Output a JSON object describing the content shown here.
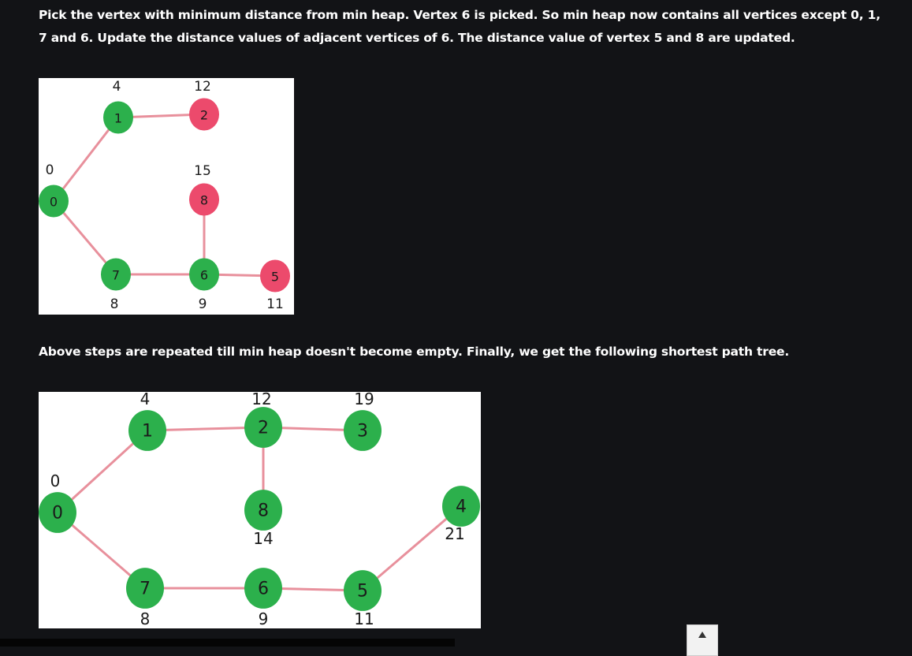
{
  "article": {
    "paragraph1": "Pick the vertex with minimum distance from min heap. Vertex 6 is picked. So min heap now contains all vertices except 0, 1, 7 and 6. Update the distance values of adjacent vertices of 6. The distance value of vertex 5 and 8 are updated.",
    "paragraph2": "Above steps are repeated till min heap doesn't become empty. Finally, we get the following shortest path tree."
  },
  "figure1": {
    "nodes": [
      {
        "id": "0",
        "dist": "0",
        "status": "green"
      },
      {
        "id": "1",
        "dist": "4",
        "status": "green"
      },
      {
        "id": "2",
        "dist": "12",
        "status": "red"
      },
      {
        "id": "8",
        "dist": "15",
        "status": "red"
      },
      {
        "id": "7",
        "dist": "8",
        "status": "green"
      },
      {
        "id": "6",
        "dist": "9",
        "status": "green"
      },
      {
        "id": "5",
        "dist": "11",
        "status": "red"
      }
    ],
    "edges": [
      [
        "0",
        "1"
      ],
      [
        "1",
        "2"
      ],
      [
        "0",
        "7"
      ],
      [
        "7",
        "6"
      ],
      [
        "6",
        "8"
      ],
      [
        "6",
        "5"
      ]
    ]
  },
  "figure2": {
    "nodes": [
      {
        "id": "0",
        "dist": "0",
        "status": "green"
      },
      {
        "id": "1",
        "dist": "4",
        "status": "green"
      },
      {
        "id": "2",
        "dist": "12",
        "status": "green"
      },
      {
        "id": "3",
        "dist": "19",
        "status": "green"
      },
      {
        "id": "8",
        "dist": "14",
        "status": "green"
      },
      {
        "id": "4",
        "dist": "21",
        "status": "green"
      },
      {
        "id": "7",
        "dist": "8",
        "status": "green"
      },
      {
        "id": "6",
        "dist": "9",
        "status": "green"
      },
      {
        "id": "5",
        "dist": "11",
        "status": "green"
      }
    ],
    "edges": [
      [
        "0",
        "1"
      ],
      [
        "1",
        "2"
      ],
      [
        "2",
        "3"
      ],
      [
        "2",
        "8"
      ],
      [
        "0",
        "7"
      ],
      [
        "7",
        "6"
      ],
      [
        "6",
        "5"
      ],
      [
        "5",
        "4"
      ]
    ]
  },
  "colors": {
    "background": "#121316",
    "node_green": "#2cb04c",
    "node_red": "#ec4a6c",
    "edge": "#e8909c"
  },
  "icons": {
    "scroll_top": "arrow-up-icon"
  }
}
